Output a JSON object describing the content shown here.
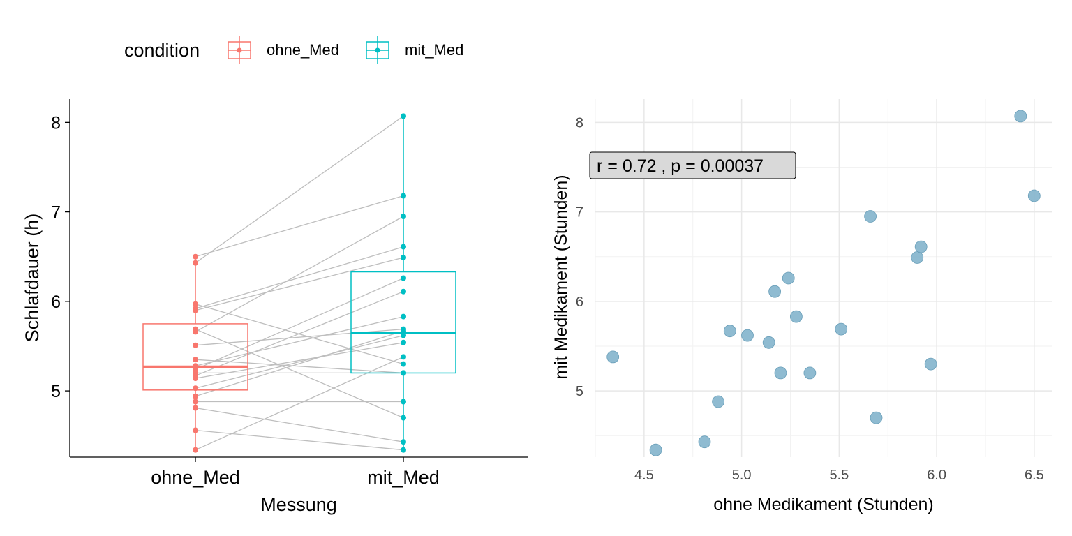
{
  "legend": {
    "title": "condition",
    "items": [
      {
        "label": "ohne_Med",
        "color": "#F8766D"
      },
      {
        "label": "mit_Med",
        "color": "#00BFC4"
      }
    ]
  },
  "chart_data": [
    {
      "type": "box",
      "xlabel": "Messung",
      "ylabel": "Schlafdauer (h)",
      "categories": [
        "ohne_Med",
        "mit_Med"
      ],
      "y_ticks": [
        5,
        6,
        7,
        8
      ],
      "ylim": [
        4.26,
        8.26
      ],
      "grid": false,
      "legend_position": "top",
      "colors": {
        "ohne_Med": "#F8766D",
        "mit_Med": "#00BFC4",
        "lines": "#BEBEBE"
      },
      "boxes": [
        {
          "name": "ohne_Med",
          "min": 4.34,
          "q1": 5.01,
          "median": 5.27,
          "q3": 5.75,
          "max": 6.5
        },
        {
          "name": "mit_Med",
          "min": 4.34,
          "q1": 5.2,
          "median": 5.65,
          "q3": 6.33,
          "max": 8.07
        }
      ],
      "pairs": [
        {
          "ohne_Med": 4.34,
          "mit_Med": 5.38
        },
        {
          "ohne_Med": 4.56,
          "mit_Med": 4.34
        },
        {
          "ohne_Med": 4.81,
          "mit_Med": 4.43
        },
        {
          "ohne_Med": 4.88,
          "mit_Med": 4.88
        },
        {
          "ohne_Med": 4.94,
          "mit_Med": 5.67
        },
        {
          "ohne_Med": 5.03,
          "mit_Med": 5.62
        },
        {
          "ohne_Med": 5.14,
          "mit_Med": 5.54
        },
        {
          "ohne_Med": 5.17,
          "mit_Med": 6.11
        },
        {
          "ohne_Med": 5.2,
          "mit_Med": 5.2
        },
        {
          "ohne_Med": 5.24,
          "mit_Med": 6.26
        },
        {
          "ohne_Med": 5.28,
          "mit_Med": 5.83
        },
        {
          "ohne_Med": 5.35,
          "mit_Med": 5.2
        },
        {
          "ohne_Med": 5.51,
          "mit_Med": 5.69
        },
        {
          "ohne_Med": 5.66,
          "mit_Med": 6.95
        },
        {
          "ohne_Med": 5.69,
          "mit_Med": 4.7
        },
        {
          "ohne_Med": 5.9,
          "mit_Med": 6.49
        },
        {
          "ohne_Med": 5.92,
          "mit_Med": 6.61
        },
        {
          "ohne_Med": 5.97,
          "mit_Med": 5.3
        },
        {
          "ohne_Med": 6.43,
          "mit_Med": 8.07
        },
        {
          "ohne_Med": 6.5,
          "mit_Med": 7.18
        }
      ]
    },
    {
      "type": "scatter",
      "xlabel": "ohne Medikament (Stunden)",
      "ylabel": "mit Medikament (Stunden)",
      "annotation": "r = 0.72 , p = 0.00037",
      "x_ticks": [
        "4.5",
        "5.0",
        "5.5",
        "6.0",
        "6.5"
      ],
      "y_ticks": [
        "5",
        "6",
        "7",
        "8"
      ],
      "xlim": [
        4.25,
        6.59
      ],
      "ylim": [
        4.26,
        8.26
      ],
      "grid": true,
      "point_color": "#7BAFC9",
      "x": [
        4.34,
        4.56,
        4.81,
        4.88,
        4.94,
        5.03,
        5.14,
        5.17,
        5.2,
        5.24,
        5.28,
        5.35,
        5.51,
        5.66,
        5.69,
        5.9,
        5.92,
        5.97,
        6.43,
        6.5
      ],
      "y": [
        5.38,
        4.34,
        4.43,
        4.88,
        5.67,
        5.62,
        5.54,
        6.11,
        5.2,
        6.26,
        5.83,
        5.2,
        5.69,
        6.95,
        4.7,
        6.49,
        6.61,
        5.3,
        8.07,
        7.18
      ]
    }
  ]
}
